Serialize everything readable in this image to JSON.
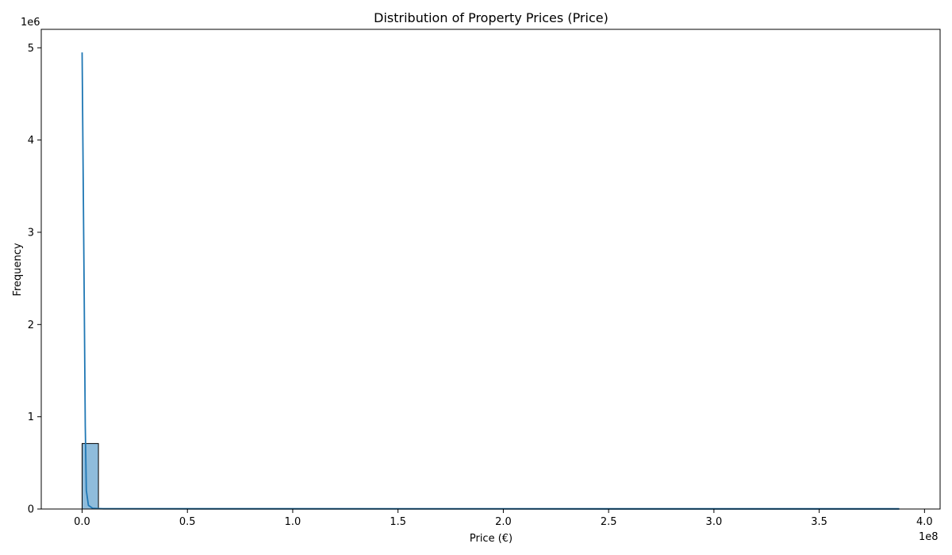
{
  "chart_data": {
    "type": "bar",
    "title": "Distribution of Property Prices (Price)",
    "xlabel": "Price (€)",
    "ylabel": "Frequency",
    "x_offset_text": "1e8",
    "y_offset_text": "1e6",
    "xlim": [
      -19400000,
      407400000
    ],
    "ylim": [
      0,
      5200000
    ],
    "x_ticks": [
      0,
      50000000,
      100000000,
      150000000,
      200000000,
      250000000,
      300000000,
      350000000,
      400000000
    ],
    "x_tick_labels": [
      "0.0",
      "0.5",
      "1.0",
      "1.5",
      "2.0",
      "2.5",
      "3.0",
      "3.5",
      "4.0"
    ],
    "y_ticks": [
      0,
      1000000,
      2000000,
      3000000,
      4000000,
      5000000
    ],
    "y_tick_labels": [
      "0",
      "1",
      "2",
      "3",
      "4",
      "5"
    ],
    "grid": false,
    "bins": [
      {
        "start": 0,
        "end": 7750000,
        "count": 710000
      }
    ],
    "kde": {
      "x": [
        0,
        1000000,
        1500000,
        2000000,
        3000000,
        5000000,
        10000000,
        388000000
      ],
      "y": [
        4950000,
        2300000,
        900000,
        200000,
        40000,
        8000,
        2000,
        0
      ]
    },
    "x_max": 388000000,
    "colors": {
      "bar_fill": "#8fbcdb",
      "bar_edge": "#000000",
      "kde_line": "#1f77b4"
    }
  }
}
